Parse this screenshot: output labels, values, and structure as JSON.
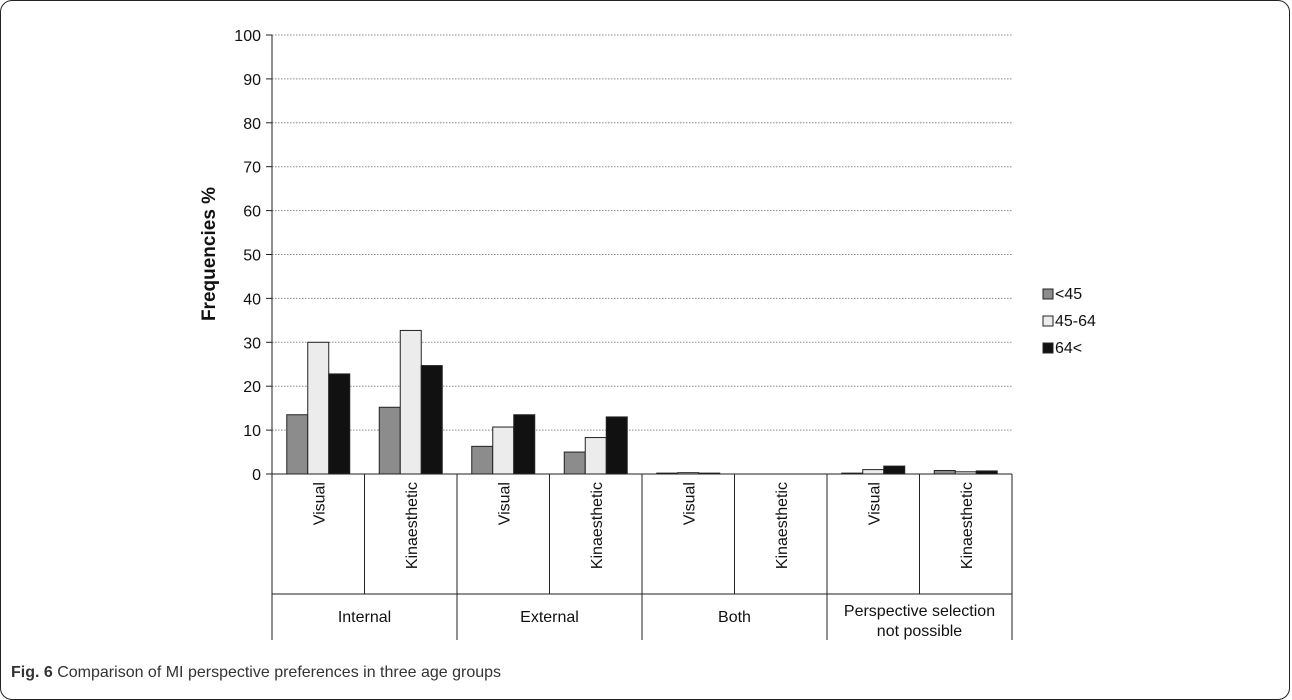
{
  "chart_data": {
    "type": "bar",
    "ylabel": "Frequencies %",
    "ylim": [
      0,
      100
    ],
    "yticks": [
      0,
      10,
      20,
      30,
      40,
      50,
      60,
      70,
      80,
      90,
      100
    ],
    "grid": true,
    "legend_position": "right",
    "groups": [
      {
        "label": "Internal",
        "categories": [
          "Visual",
          "Kinaesthetic"
        ]
      },
      {
        "label": "External",
        "categories": [
          "Visual",
          "Kinaesthetic"
        ]
      },
      {
        "label": "Both",
        "categories": [
          "Visual",
          "Kinaesthetic"
        ]
      },
      {
        "label": "Perspective selection not possible",
        "categories": [
          "Visual",
          "Kinaesthetic"
        ]
      }
    ],
    "series": [
      {
        "name": "<45",
        "color": "#8c8c8c",
        "values": [
          13.5,
          15.2,
          6.3,
          5.0,
          0.2,
          0.0,
          0.2,
          0.8
        ]
      },
      {
        "name": "45-64",
        "color": "#ececec",
        "values": [
          30.0,
          32.7,
          10.7,
          8.3,
          0.3,
          0.0,
          1.0,
          0.5
        ]
      },
      {
        "name": "64<",
        "color": "#111111",
        "values": [
          22.8,
          24.7,
          13.5,
          13.0,
          0.2,
          0.0,
          1.8,
          0.7
        ]
      }
    ]
  },
  "caption": {
    "label": "Fig. 6",
    "text": " Comparison of MI perspective preferences in three age groups"
  }
}
